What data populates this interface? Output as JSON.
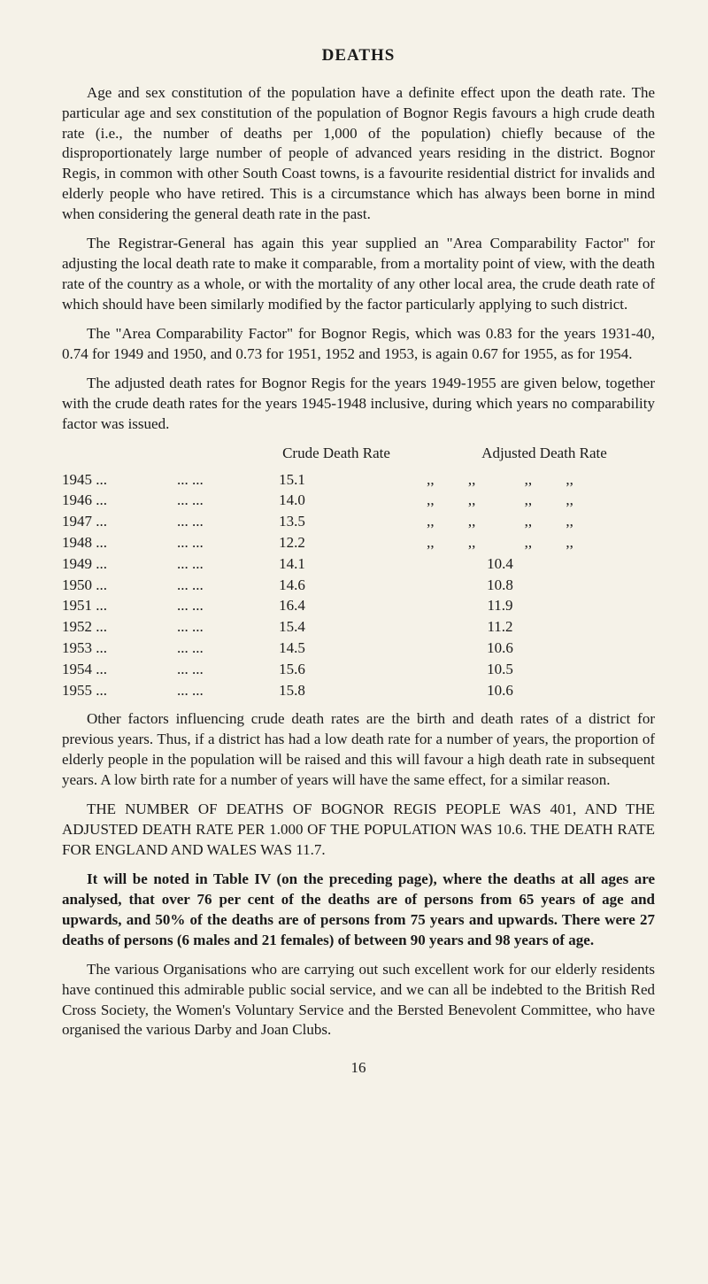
{
  "title": "DEATHS",
  "para1": "Age and sex constitution of the population have a definite effect upon the death rate. The particular age and sex constitution of the population of Bognor Regis favours a high crude death rate (i.e., the number of deaths per 1,000 of the population) chiefly because of the disproportionately large number of people of advanced years residing in the district. Bognor Regis, in common with other South Coast towns, is a favourite residential district for invalids and elderly people who have retired. This is a circumstance which has always been borne in mind when considering the general death rate in the past.",
  "para2": "The Registrar-General has again this year supplied an \"Area Comparability Factor\" for adjusting the local death rate to make it comparable, from a mortality point of view, with the death rate of the country as a whole, or with the mortality of any other local area, the crude death rate of which should have been similarly modified by the factor particularly applying to such district.",
  "para3": "The \"Area Comparability Factor\" for Bognor Regis, which was 0.83 for the years 1931-40, 0.74 for 1949 and 1950, and 0.73 for 1951, 1952 and 1953, is again 0.67 for 1955, as for 1954.",
  "para4": "The adjusted death rates for Bognor Regis for the years 1949-1955 are given below, together with the crude death rates for the years 1945-1948 inclusive, during which years no comparability factor was issued.",
  "table": {
    "header_crude": "Crude Death Rate",
    "header_adj": "Adjusted Death Rate",
    "rows": [
      {
        "year": "1945 ...",
        "dots": "...        ...",
        "crude": "15.1",
        "adj": ",,         ,,             ,,         ,,"
      },
      {
        "year": "1946 ...",
        "dots": "...        ...",
        "crude": "14.0",
        "adj": ",,         ,,             ,,         ,,"
      },
      {
        "year": "1947 ...",
        "dots": "...        ...",
        "crude": "13.5",
        "adj": ",,         ,,             ,,         ,,"
      },
      {
        "year": "1948 ...",
        "dots": "...        ...",
        "crude": "12.2",
        "adj": ",,         ,,             ,,         ,,"
      },
      {
        "year": "1949 ...",
        "dots": "...        ...",
        "crude": "14.1",
        "adj": "10.4"
      },
      {
        "year": "1950 ...",
        "dots": "...        ...",
        "crude": "14.6",
        "adj": "10.8"
      },
      {
        "year": "1951 ...",
        "dots": "...        ...",
        "crude": "16.4",
        "adj": "11.9"
      },
      {
        "year": "1952 ...",
        "dots": "...        ...",
        "crude": "15.4",
        "adj": "11.2"
      },
      {
        "year": "1953 ...",
        "dots": "...        ...",
        "crude": "14.5",
        "adj": "10.6"
      },
      {
        "year": "1954 ...",
        "dots": "...        ...",
        "crude": "15.6",
        "adj": "10.5"
      },
      {
        "year": "1955 ...",
        "dots": "...        ...",
        "crude": "15.8",
        "adj": "10.6"
      }
    ]
  },
  "para5": "Other factors influencing crude death rates are the birth and death rates of a district for previous years. Thus, if a district has had a low death rate for a number of years, the proportion of elderly people in the population will be raised and this will favour a high death rate in subsequent years. A low birth rate for a number of years will have the same effect, for a similar reason.",
  "para6": "THE NUMBER OF DEATHS OF BOGNOR REGIS PEOPLE WAS 401, AND THE ADJUSTED DEATH RATE PER 1.000 OF THE POPULATION WAS 10.6. THE DEATH RATE FOR ENGLAND AND WALES WAS 11.7.",
  "para7": "It will be noted in Table IV (on the preceding page), where the deaths at all ages are analysed, that over 76 per cent of the deaths are of persons from 65 years of age and upwards, and 50% of the deaths are of persons from 75 years and upwards. There were 27 deaths of persons (6 males and 21 females) of between 90 years and 98 years of age.",
  "para8": "The various Organisations who are carrying out such excellent work for our elderly residents have continued this admirable public social service, and we can all be indebted to the British Red Cross Society, the Women's Voluntary Service and the Bersted Benevolent Committee, who have organised the various Darby and Joan Clubs.",
  "pagenum": "16"
}
